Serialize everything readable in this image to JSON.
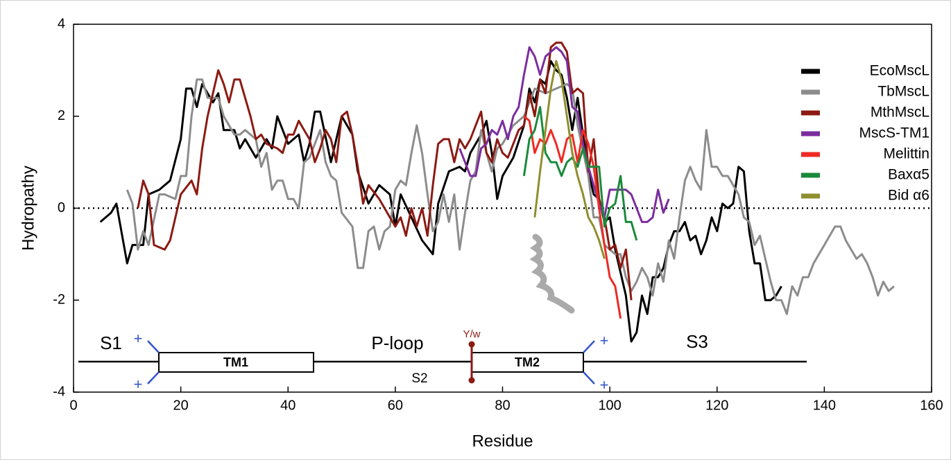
{
  "chart_data": {
    "type": "line",
    "xlabel": "Residue",
    "ylabel": "Hydropathy",
    "xlim": [
      0,
      160
    ],
    "xticks": [
      0,
      20,
      40,
      60,
      80,
      100,
      120,
      140,
      160
    ],
    "ylim": [
      -4,
      4
    ],
    "yticks": [
      -4,
      -2,
      0,
      2,
      4
    ],
    "zero_line": true,
    "legend": "upper right",
    "series": [
      {
        "name": "EcoMscL",
        "color": "#000000",
        "x": [
          5,
          7,
          8,
          10,
          11,
          13,
          14,
          16,
          18,
          20,
          21,
          22,
          23,
          24,
          26,
          27,
          28,
          30,
          31,
          32,
          34,
          36,
          37,
          38,
          40,
          42,
          43,
          44,
          45,
          46,
          48,
          50,
          52,
          53,
          55,
          57,
          59,
          60,
          61,
          63,
          65,
          67,
          68,
          70,
          72,
          73,
          74,
          76,
          77,
          78,
          79,
          80,
          82,
          84,
          85,
          86,
          87,
          88,
          89,
          90,
          91,
          92,
          93,
          94,
          95,
          96,
          97,
          98,
          99,
          100,
          101,
          102,
          103,
          104,
          105,
          106,
          107,
          108,
          109,
          110,
          111,
          112,
          113,
          114,
          115,
          116,
          117,
          118,
          119,
          120,
          121,
          122,
          123,
          124,
          125,
          126,
          127,
          128,
          129,
          130,
          131,
          132
        ],
        "values": [
          -0.3,
          -0.1,
          0.1,
          -1.2,
          -0.8,
          -0.8,
          0.3,
          0.4,
          0.6,
          1.5,
          2.6,
          2.6,
          2.2,
          2.7,
          2.3,
          2.5,
          1.7,
          1.7,
          1.3,
          1.5,
          1.1,
          1.5,
          1.3,
          2.0,
          1.4,
          1.6,
          1.0,
          1.4,
          2.1,
          2.1,
          1.0,
          2.0,
          1.6,
          0.8,
          0.1,
          0.5,
          0.3,
          -0.4,
          0.3,
          -0.2,
          -0.7,
          -1.0,
          0.1,
          0.8,
          0.9,
          0.8,
          1.2,
          1.6,
          1.9,
          1.2,
          0.2,
          0.7,
          1.1,
          1.8,
          2.6,
          2.3,
          2.8,
          2.7,
          3.2,
          3.0,
          2.9,
          2.4,
          1.7,
          2.4,
          1.6,
          0.8,
          0.3,
          0.2,
          -0.3,
          -0.2,
          -0.9,
          -1.4,
          -1.9,
          -2.9,
          -2.7,
          -1.9,
          -2.3,
          -1.5,
          -1.5,
          -1.3,
          -0.8,
          -0.5,
          -0.5,
          -0.3,
          -0.7,
          -0.6,
          -1.0,
          -0.7,
          -0.2,
          -0.5,
          0.1,
          0.0,
          0.1,
          0.9,
          0.8,
          -0.5,
          -1.2,
          -1.2,
          -2.0,
          -2.0,
          -1.9,
          -1.7
        ]
      },
      {
        "name": "TbMscL",
        "color": "#8c8c8c",
        "x": [
          10,
          11,
          12,
          13,
          14,
          16,
          17,
          19,
          20,
          21,
          22,
          23,
          24,
          25,
          27,
          28,
          30,
          31,
          32,
          34,
          35,
          36,
          37,
          38,
          39,
          40,
          41,
          42,
          43,
          44,
          46,
          47,
          48,
          49,
          50,
          52,
          53,
          54,
          55,
          56,
          57,
          58,
          59,
          60,
          61,
          62,
          63,
          64,
          65,
          66,
          67,
          68,
          69,
          70,
          71,
          72,
          73,
          74,
          75,
          76,
          77,
          78,
          79,
          80,
          82,
          84,
          86,
          88,
          90,
          92,
          93,
          94,
          96,
          97,
          98,
          99,
          100,
          101,
          102,
          103,
          104,
          105,
          106,
          107,
          108,
          109,
          110,
          111,
          112,
          113,
          114,
          115,
          116,
          117,
          118,
          119,
          120,
          121,
          122,
          123,
          124,
          125,
          126,
          127,
          128,
          129,
          130,
          131,
          132,
          133,
          134,
          135,
          136,
          137,
          138,
          140,
          142,
          143,
          144,
          145,
          146,
          147,
          148,
          149,
          150,
          151,
          152,
          153
        ],
        "values": [
          0.4,
          0.1,
          -0.9,
          -0.5,
          -0.8,
          0.3,
          0.3,
          0.2,
          0.7,
          0.7,
          2.0,
          2.8,
          2.8,
          2.4,
          2.4,
          2.0,
          1.6,
          1.6,
          1.7,
          1.5,
          0.9,
          1.2,
          0.4,
          0.6,
          0.6,
          0.2,
          0.2,
          0.0,
          1.0,
          1.1,
          1.7,
          1.0,
          0.7,
          0.6,
          -0.1,
          -0.4,
          -1.3,
          -1.3,
          -0.5,
          -0.4,
          -0.9,
          -0.5,
          -0.4,
          0.4,
          0.6,
          0.5,
          1.2,
          1.8,
          1.2,
          0.3,
          -0.5,
          -0.3,
          0.3,
          -0.3,
          0.3,
          -0.9,
          -0.1,
          0.6,
          0.8,
          1.7,
          1.2,
          0.8,
          1.3,
          1.4,
          1.8,
          2.0,
          2.6,
          2.5,
          2.6,
          2.7,
          2.6,
          1.8,
          0.7,
          -0.2,
          -0.2,
          -0.8,
          -0.9,
          -1.0,
          -1.0,
          -1.5,
          -1.8,
          -1.6,
          -1.3,
          -1.5,
          -1.9,
          -1.2,
          -1.6,
          -0.7,
          -1.1,
          -0.2,
          0.6,
          0.9,
          0.6,
          0.4,
          1.7,
          0.9,
          0.9,
          0.7,
          0.7,
          0.5,
          0.3,
          -0.2,
          -0.3,
          -0.8,
          -0.6,
          -1.1,
          -1.6,
          -2.0,
          -2.0,
          -2.3,
          -1.7,
          -1.9,
          -1.5,
          -1.5,
          -1.2,
          -0.8,
          -0.4,
          -0.4,
          -0.7,
          -0.9,
          -1.1,
          -1.0,
          -1.2,
          -1.5,
          -1.9,
          -1.6,
          -1.8,
          -1.7
        ]
      },
      {
        "name": "MthMscL",
        "color": "#8b1a12",
        "x": [
          12,
          13,
          14,
          15,
          17,
          18,
          19,
          20,
          22,
          23,
          24,
          25,
          26,
          27,
          28,
          29,
          30,
          31,
          32,
          33,
          34,
          35,
          36,
          38,
          39,
          40,
          41,
          42,
          43,
          44,
          45,
          46,
          47,
          48,
          49,
          50,
          51,
          52,
          53,
          54,
          55,
          57,
          58,
          59,
          60,
          61,
          62,
          63,
          64,
          65,
          66,
          67,
          68,
          69,
          70,
          71,
          72,
          73,
          74,
          75,
          76,
          77,
          78,
          79,
          80,
          81,
          82,
          83,
          84,
          85,
          86,
          87,
          88,
          89,
          90,
          91,
          92,
          93,
          94,
          95,
          96,
          97,
          98,
          99,
          100,
          101,
          102,
          103,
          104
        ],
        "values": [
          0.0,
          0.6,
          0.3,
          -0.8,
          -0.9,
          -0.7,
          -0.2,
          0.3,
          0.6,
          0.3,
          1.3,
          2.0,
          2.5,
          3.0,
          2.7,
          2.3,
          2.8,
          2.8,
          2.4,
          2.0,
          1.5,
          1.6,
          1.4,
          1.3,
          1.2,
          1.6,
          1.6,
          1.9,
          1.7,
          1.5,
          1.0,
          1.3,
          1.7,
          1.5,
          1.0,
          2.0,
          2.1,
          1.6,
          0.9,
          0.1,
          0.5,
          0.2,
          0.0,
          -0.2,
          -0.4,
          -0.2,
          -0.6,
          0.0,
          -0.4,
          0.0,
          -0.6,
          0.5,
          1.4,
          1.5,
          1.5,
          1.0,
          1.5,
          1.3,
          1.5,
          1.8,
          2.1,
          1.2,
          1.0,
          1.5,
          1.2,
          1.1,
          1.4,
          1.7,
          1.8,
          2.5,
          2.0,
          2.8,
          2.5,
          3.5,
          3.6,
          3.6,
          3.4,
          2.5,
          2.6,
          2.5,
          0.8,
          1.5,
          0.2,
          -0.2,
          -0.9,
          -0.8,
          -1.3,
          -0.9,
          -2.0
        ]
      },
      {
        "name": "MscS-TM1",
        "color": "#7b2d9e",
        "x": [
          72,
          73,
          74,
          75,
          76,
          77,
          78,
          79,
          80,
          81,
          82,
          83,
          84,
          85,
          86,
          87,
          88,
          89,
          90,
          91,
          92,
          93,
          94,
          95,
          96,
          97,
          98,
          99,
          100,
          101,
          102,
          103,
          104,
          105,
          106,
          107,
          108,
          109,
          110,
          111
        ],
        "values": [
          1.3,
          1.0,
          0.7,
          0.7,
          1.3,
          1.4,
          1.7,
          1.6,
          1.9,
          1.5,
          2.0,
          2.2,
          2.9,
          3.5,
          3.3,
          2.9,
          3.3,
          3.4,
          3.5,
          3.4,
          3.2,
          2.2,
          2.1,
          1.4,
          0.9,
          0.5,
          0.1,
          -0.2,
          0.4,
          0.4,
          0.4,
          0.4,
          0.3,
          0.0,
          -0.3,
          -0.3,
          -0.2,
          0.4,
          -0.1,
          0.2
        ]
      },
      {
        "name": "Melittin",
        "color": "#ee2a24",
        "x": [
          84,
          85,
          86,
          87,
          88,
          89,
          90,
          91,
          92,
          93,
          94,
          95,
          96,
          97,
          98,
          99,
          100,
          101,
          102
        ],
        "values": [
          2.0,
          1.9,
          1.2,
          1.5,
          1.4,
          1.7,
          1.4,
          1.0,
          1.5,
          1.6,
          1.0,
          1.7,
          1.4,
          0.9,
          0.0,
          -0.8,
          -1.5,
          -1.7,
          -2.4
        ]
      },
      {
        "name": "Baxα5",
        "color": "#1a8a3a",
        "x": [
          84,
          85,
          86,
          87,
          88,
          89,
          90,
          91,
          92,
          93,
          94,
          95,
          96,
          97,
          98,
          99,
          100,
          101,
          102,
          103,
          104,
          105
        ],
        "values": [
          0.7,
          1.5,
          1.7,
          2.2,
          1.2,
          1.0,
          1.0,
          0.7,
          1.0,
          1.1,
          0.9,
          1.3,
          0.9,
          0.9,
          0.9,
          -0.4,
          0.0,
          0.1,
          0.7,
          -0.3,
          -0.3,
          -0.7
        ]
      },
      {
        "name": "Bid α6",
        "color": "#8e8e2e",
        "x": [
          86,
          87,
          88,
          89,
          90,
          91,
          92,
          93,
          94,
          95,
          96,
          97,
          98,
          99
        ],
        "values": [
          -0.2,
          0.8,
          1.7,
          2.6,
          3.2,
          2.8,
          2.0,
          1.2,
          0.7,
          0.3,
          -0.2,
          -0.4,
          -0.7,
          -1.1
        ]
      }
    ],
    "annotations": [
      "S1",
      "TM1",
      "P-loop",
      "S2",
      "Y/w",
      "TM2",
      "S3",
      "+",
      "+",
      "+",
      "+"
    ]
  }
}
